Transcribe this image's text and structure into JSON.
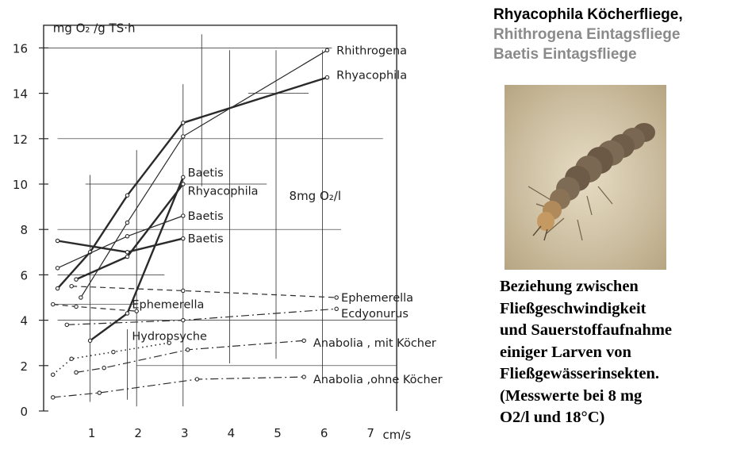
{
  "title_lines": [
    {
      "text": "Rhyacophila Köcherfliege,",
      "color": "#000000"
    },
    {
      "text": "Rhithrogena Eintagsfliege",
      "color": "#8a8a8a"
    },
    {
      "text": "Baetis Eintagsfliege",
      "color": "#8a8a8a"
    }
  ],
  "caption_lines": [
    "Beziehung zwischen",
    "Fließgeschwindigkeit",
    "und Sauerstoffaufnahme",
    "einiger Larven von",
    "Fließgewässerinsekten.",
    "(Messwerte bei 8 mg",
    "O2/l und 18°C)"
  ],
  "photo": {
    "subject": "larva",
    "icon": "insect-larva-photo"
  },
  "chart_data": {
    "type": "line",
    "ylabel": "mg O₂ /g TS·h",
    "xlabel": "cm/s",
    "annotation": "8mg O₂/l",
    "xlim": [
      0,
      7.8
    ],
    "ylim": [
      0,
      17
    ],
    "x_ticks": [
      1,
      2,
      3,
      4,
      5,
      6,
      7
    ],
    "y_ticks": [
      0,
      2,
      4,
      6,
      8,
      10,
      12,
      14,
      16
    ],
    "series": [
      {
        "name": "Rhithrogena",
        "style": "thin",
        "points": [
          [
            0.8,
            5.0
          ],
          [
            1.8,
            8.3
          ],
          [
            3.0,
            12.1
          ],
          [
            6.1,
            15.9
          ]
        ]
      },
      {
        "name": "Rhyacophila",
        "style": "bold",
        "points": [
          [
            0.3,
            5.4
          ],
          [
            1.0,
            7.0
          ],
          [
            1.8,
            9.5
          ],
          [
            3.0,
            12.7
          ],
          [
            6.1,
            14.7
          ]
        ]
      },
      {
        "name": "Baetis",
        "style": "bold",
        "points": [
          [
            1.0,
            3.1
          ],
          [
            1.8,
            4.3
          ],
          [
            3.0,
            10.3
          ]
        ]
      },
      {
        "name": "Rhyacophila",
        "style": "bold",
        "points": [
          [
            0.7,
            5.8
          ],
          [
            1.8,
            6.8
          ],
          [
            3.0,
            10.0
          ]
        ]
      },
      {
        "name": "Baetis",
        "style": "thin",
        "points": [
          [
            0.3,
            6.3
          ],
          [
            1.8,
            7.7
          ],
          [
            3.0,
            8.6
          ]
        ]
      },
      {
        "name": "Baetis",
        "style": "bold",
        "points": [
          [
            0.3,
            7.5
          ],
          [
            1.8,
            7.0
          ],
          [
            3.0,
            7.6
          ]
        ]
      },
      {
        "name": "Ephemerella",
        "style": "dashed",
        "points": [
          [
            0.6,
            5.5
          ],
          [
            3.0,
            5.3
          ],
          [
            6.3,
            5.0
          ]
        ]
      },
      {
        "name": "Ephemerella",
        "style": "dashed",
        "points": [
          [
            0.2,
            4.7
          ],
          [
            0.7,
            4.6
          ],
          [
            2.0,
            4.4
          ]
        ]
      },
      {
        "name": "Ecdyonurus",
        "style": "dashdot",
        "points": [
          [
            0.5,
            3.8
          ],
          [
            3.0,
            4.0
          ],
          [
            6.3,
            4.5
          ]
        ]
      },
      {
        "name": "Hydropsyche",
        "style": "dotted",
        "points": [
          [
            0.2,
            1.6
          ],
          [
            0.6,
            2.3
          ],
          [
            1.5,
            2.6
          ],
          [
            2.7,
            3.0
          ]
        ]
      },
      {
        "name": "Anabolia, mit Köcher",
        "style": "dashdot",
        "points": [
          [
            0.7,
            1.7
          ],
          [
            1.3,
            1.9
          ],
          [
            3.1,
            2.7
          ],
          [
            5.6,
            3.1
          ]
        ]
      },
      {
        "name": "Anabolia, ohne Köcher",
        "style": "dashdot",
        "points": [
          [
            0.2,
            0.6
          ],
          [
            1.2,
            0.8
          ],
          [
            3.3,
            1.4
          ],
          [
            5.6,
            1.5
          ]
        ]
      }
    ],
    "series_labels": [
      {
        "text": "Rhithrogena",
        "x": 6.3,
        "y": 15.9
      },
      {
        "text": "Rhyacophila",
        "x": 6.3,
        "y": 14.8
      },
      {
        "text": "Baetis",
        "x": 3.1,
        "y": 10.5
      },
      {
        "text": "Rhyacophila",
        "x": 3.1,
        "y": 9.7
      },
      {
        "text": "Baetis",
        "x": 3.1,
        "y": 8.6
      },
      {
        "text": "Baetis",
        "x": 3.1,
        "y": 7.6
      },
      {
        "text": "Ephemerella",
        "x": 6.4,
        "y": 5.0
      },
      {
        "text": "Ephemerella",
        "x": 1.9,
        "y": 4.7
      },
      {
        "text": "Ecdyonurus",
        "x": 6.4,
        "y": 4.3
      },
      {
        "text": "Hydropsyche",
        "x": 1.9,
        "y": 3.3
      },
      {
        "text": "Anabolia , mit Köcher",
        "x": 5.8,
        "y": 3.0
      },
      {
        "text": "Anabolia ,ohne Köcher",
        "x": 5.8,
        "y": 1.4
      }
    ]
  }
}
